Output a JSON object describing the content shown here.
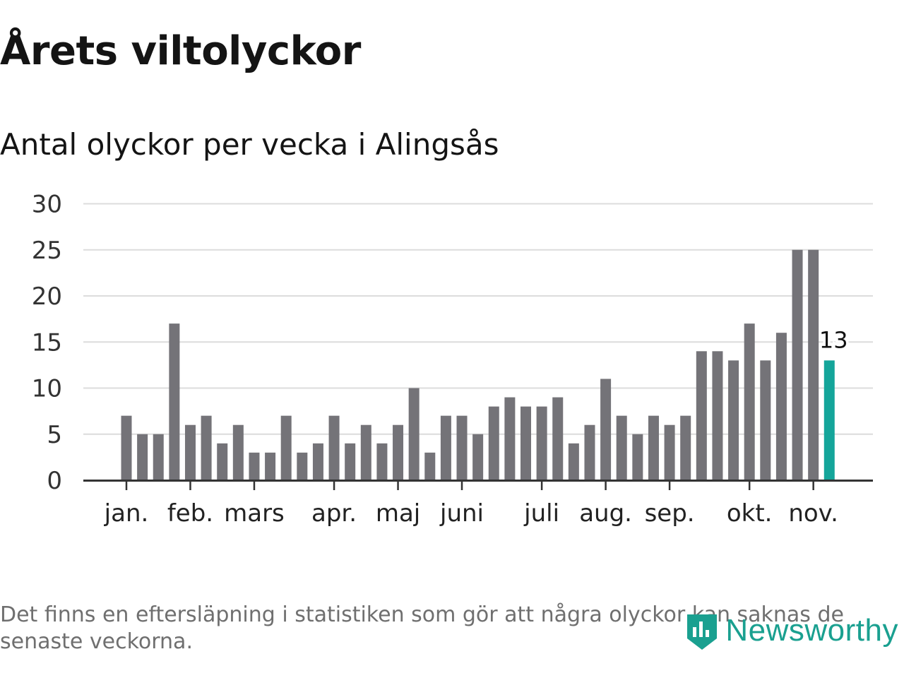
{
  "header": {
    "title": "Årets viltolyckor",
    "subtitle": "Antal olyckor per vecka i Alingsås"
  },
  "footer": {
    "note": "Det finns en eftersläpning i statistiken som gör att några olyckor kan saknas de senaste veckorna.",
    "brand": "Newsworthy"
  },
  "colors": {
    "bar": "#747378",
    "highlight": "#14a59a",
    "grid": "#dcdcdc",
    "axis": "#333333",
    "brand": "#1aa090"
  },
  "chart_data": {
    "type": "bar",
    "title": "Antal olyckor per vecka i Alingsås",
    "xlabel": "",
    "ylabel": "",
    "ylim": [
      0,
      30
    ],
    "yticks": [
      0,
      5,
      10,
      15,
      20,
      25,
      30
    ],
    "grid": true,
    "month_labels": [
      {
        "label": "jan.",
        "week": 1
      },
      {
        "label": "feb.",
        "week": 5
      },
      {
        "label": "mars",
        "week": 9
      },
      {
        "label": "apr.",
        "week": 14
      },
      {
        "label": "maj",
        "week": 18
      },
      {
        "label": "juni",
        "week": 22
      },
      {
        "label": "juli",
        "week": 27
      },
      {
        "label": "aug.",
        "week": 31
      },
      {
        "label": "sep.",
        "week": 35
      },
      {
        "label": "okt.",
        "week": 40
      },
      {
        "label": "nov.",
        "week": 44
      }
    ],
    "weeks": [
      1,
      2,
      3,
      4,
      5,
      6,
      7,
      8,
      9,
      10,
      11,
      12,
      13,
      14,
      15,
      16,
      17,
      18,
      19,
      20,
      21,
      22,
      23,
      24,
      25,
      26,
      27,
      28,
      29,
      30,
      31,
      32,
      33,
      34,
      35,
      36,
      37,
      38,
      39,
      40,
      41,
      42,
      43,
      44,
      45
    ],
    "values": [
      7,
      5,
      5,
      17,
      6,
      7,
      4,
      6,
      3,
      3,
      7,
      3,
      4,
      7,
      4,
      6,
      4,
      6,
      10,
      3,
      7,
      7,
      5,
      8,
      9,
      8,
      8,
      9,
      4,
      6,
      11,
      7,
      5,
      7,
      6,
      7,
      14,
      14,
      13,
      17,
      13,
      16,
      25,
      25,
      13
    ],
    "highlight_last": true,
    "highlight_label": "13"
  }
}
